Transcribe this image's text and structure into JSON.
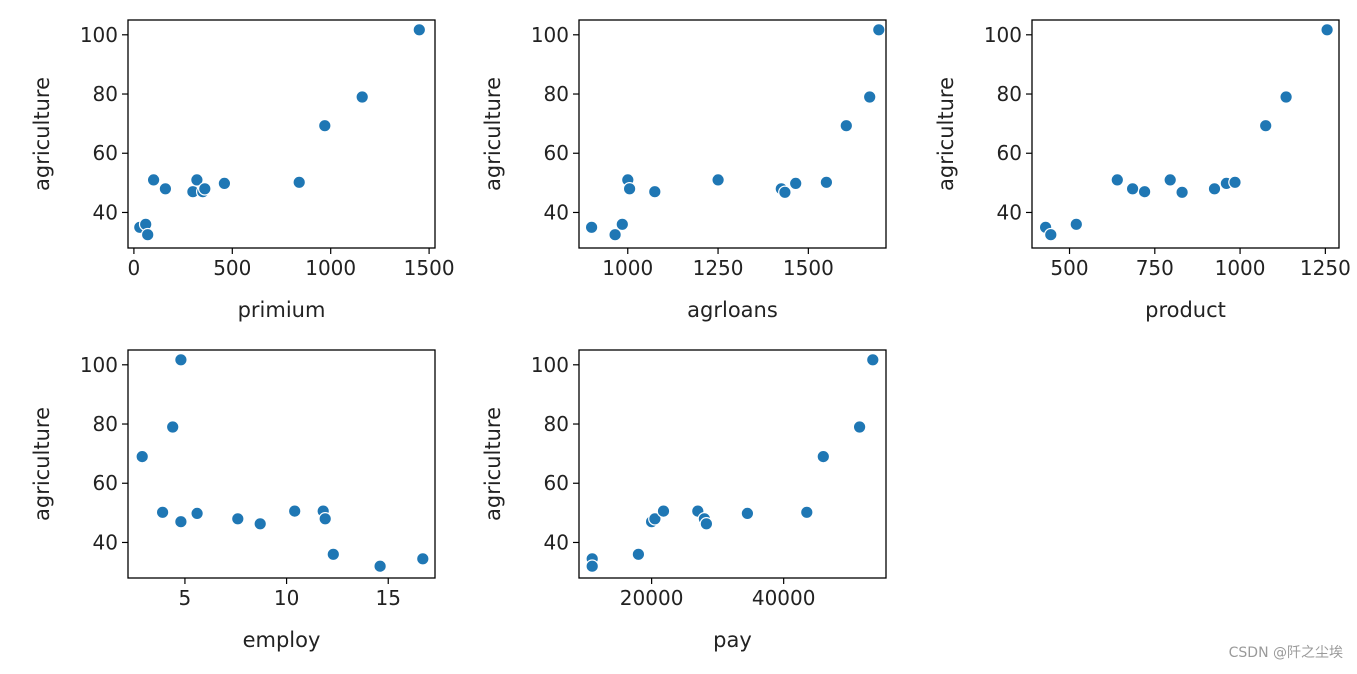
{
  "watermark": "CSDN @阡之尘埃",
  "colors": {
    "marker": "#1f77b4",
    "marker_edge": "#ffffff"
  },
  "chart_data": [
    {
      "type": "scatter",
      "xlabel": "primium",
      "ylabel": "agriculture",
      "xlim": [
        -30,
        1530
      ],
      "ylim": [
        28,
        105
      ],
      "xticks": [
        0,
        500,
        1000,
        1500
      ],
      "yticks": [
        40,
        60,
        80,
        100
      ],
      "points": [
        [
          30,
          35
        ],
        [
          60,
          36
        ],
        [
          70,
          32.5
        ],
        [
          100,
          51
        ],
        [
          160,
          48
        ],
        [
          300,
          47
        ],
        [
          320,
          51
        ],
        [
          350,
          47
        ],
        [
          360,
          48
        ],
        [
          460,
          49.8
        ],
        [
          840,
          50.2
        ],
        [
          970,
          69.3
        ],
        [
          1160,
          79
        ],
        [
          1450,
          101.7
        ]
      ]
    },
    {
      "type": "scatter",
      "xlabel": "agrloans",
      "ylabel": "agriculture",
      "xlim": [
        865,
        1715
      ],
      "ylim": [
        28,
        105
      ],
      "xticks": [
        1000,
        1250,
        1500
      ],
      "yticks": [
        40,
        60,
        80,
        100
      ],
      "points": [
        [
          900,
          35
        ],
        [
          965,
          32.5
        ],
        [
          985,
          36
        ],
        [
          1000,
          51
        ],
        [
          1005,
          48
        ],
        [
          1075,
          47
        ],
        [
          1250,
          51
        ],
        [
          1425,
          48
        ],
        [
          1435,
          46.8
        ],
        [
          1465,
          49.8
        ],
        [
          1550,
          50.2
        ],
        [
          1605,
          69.3
        ],
        [
          1670,
          79
        ],
        [
          1695,
          101.7
        ]
      ]
    },
    {
      "type": "scatter",
      "xlabel": "product",
      "ylabel": "agriculture",
      "xlim": [
        390,
        1290
      ],
      "ylim": [
        28,
        105
      ],
      "xticks": [
        500,
        750,
        1000,
        1250
      ],
      "yticks": [
        40,
        60,
        80,
        100
      ],
      "points": [
        [
          430,
          35
        ],
        [
          445,
          32.5
        ],
        [
          520,
          36
        ],
        [
          640,
          51
        ],
        [
          685,
          48
        ],
        [
          720,
          47
        ],
        [
          795,
          51
        ],
        [
          830,
          46.8
        ],
        [
          925,
          48
        ],
        [
          960,
          49.8
        ],
        [
          985,
          50.2
        ],
        [
          1075,
          69.3
        ],
        [
          1135,
          79
        ],
        [
          1255,
          101.7
        ]
      ]
    },
    {
      "type": "scatter",
      "xlabel": "employ",
      "ylabel": "agriculture",
      "xlim": [
        2.2,
        17.3
      ],
      "ylim": [
        28,
        105
      ],
      "xticks": [
        5,
        10,
        15
      ],
      "yticks": [
        40,
        60,
        80,
        100
      ],
      "points": [
        [
          2.9,
          69
        ],
        [
          3.9,
          50.2
        ],
        [
          4.4,
          79
        ],
        [
          4.8,
          47
        ],
        [
          4.8,
          101.7
        ],
        [
          5.6,
          49.8
        ],
        [
          7.6,
          48
        ],
        [
          8.7,
          46.3
        ],
        [
          10.4,
          50.6
        ],
        [
          11.8,
          50.6
        ],
        [
          11.9,
          48
        ],
        [
          12.3,
          36
        ],
        [
          14.6,
          32
        ],
        [
          16.7,
          34.5
        ]
      ]
    },
    {
      "type": "scatter",
      "xlabel": "pay",
      "ylabel": "agriculture",
      "xlim": [
        9000,
        55500
      ],
      "ylim": [
        28,
        105
      ],
      "xticks": [
        20000,
        40000
      ],
      "yticks": [
        40,
        60,
        80,
        100
      ],
      "points": [
        [
          11000,
          34.5
        ],
        [
          11000,
          32
        ],
        [
          18000,
          36
        ],
        [
          20000,
          47
        ],
        [
          20500,
          48
        ],
        [
          21800,
          50.6
        ],
        [
          27000,
          50.6
        ],
        [
          28000,
          48
        ],
        [
          28300,
          46.3
        ],
        [
          34500,
          49.8
        ],
        [
          43500,
          50.2
        ],
        [
          46000,
          69
        ],
        [
          51500,
          79
        ],
        [
          53500,
          101.7
        ]
      ]
    }
  ]
}
